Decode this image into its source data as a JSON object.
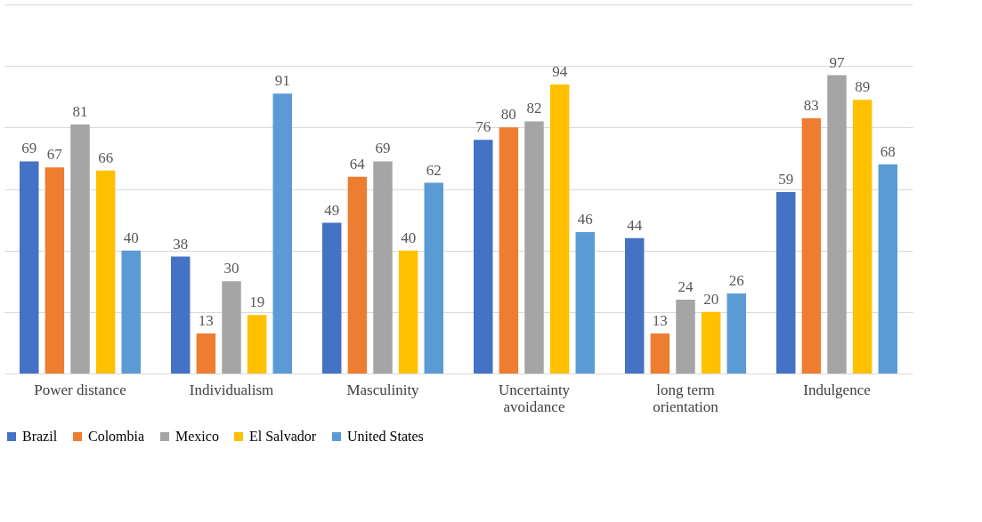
{
  "chart_data": {
    "type": "bar",
    "categories": [
      "Power distance",
      "Individualism",
      "Masculinity",
      "Uncertainty avoidance",
      "long term orientation",
      "Indulgence"
    ],
    "series": [
      {
        "name": "Brazil",
        "color": "#4472c4",
        "values": [
          69,
          38,
          49,
          76,
          44,
          59
        ]
      },
      {
        "name": "Colombia",
        "color": "#ed7d31",
        "values": [
          67,
          13,
          64,
          80,
          13,
          83
        ]
      },
      {
        "name": "Mexico",
        "color": "#a5a5a5",
        "values": [
          81,
          30,
          69,
          82,
          24,
          97
        ]
      },
      {
        "name": "El Salvador",
        "color": "#ffc000",
        "values": [
          66,
          19,
          40,
          94,
          20,
          89
        ]
      },
      {
        "name": "United States",
        "color": "#5b9bd5",
        "values": [
          40,
          91,
          62,
          46,
          26,
          68
        ]
      }
    ],
    "ylim": [
      0,
      120
    ],
    "yticks": [
      {
        "value": 0,
        "label": null
      },
      {
        "value": 20,
        "label": null
      },
      {
        "value": 40,
        "label": null
      },
      {
        "value": 60,
        "label": null
      },
      {
        "value": 80,
        "label": null
      },
      {
        "value": 100,
        "label": null
      },
      {
        "value": 120,
        "label": null
      }
    ],
    "tick_labels": "x",
    "grid": "y",
    "legend": "bottom",
    "data_labels": true
  }
}
